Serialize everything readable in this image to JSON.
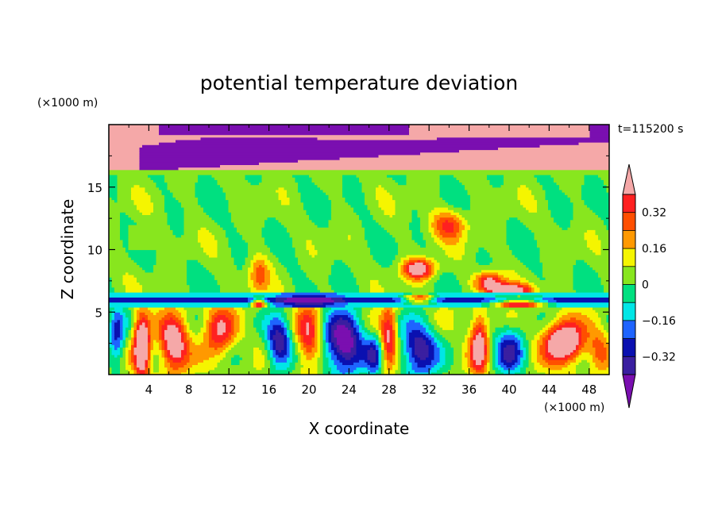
{
  "chart_data": {
    "type": "heatmap",
    "title": "potential temperature deviation",
    "xlabel": "X coordinate",
    "ylabel": "Z coordinate",
    "x_unit": "(×1000 m)",
    "y_unit": "(×1000 m)",
    "time_label": "t=115200 s",
    "xlim": [
      0,
      50
    ],
    "ylim": [
      0,
      20
    ],
    "x_ticks": [
      4,
      8,
      12,
      16,
      20,
      24,
      28,
      32,
      36,
      40,
      44,
      48
    ],
    "y_ticks": [
      5,
      10,
      15
    ],
    "colorbar": {
      "levels": [
        -0.4,
        -0.32,
        -0.24,
        -0.16,
        -0.08,
        0,
        0.08,
        0.16,
        0.24,
        0.32,
        0.4
      ],
      "labeled_levels": [
        "0.32",
        "0.16",
        "0",
        "−0.16",
        "−0.32"
      ],
      "colors": [
        "#7a0fb0",
        "#3a1fa0",
        "#0a10b0",
        "#1e64ff",
        "#00e6e6",
        "#00e080",
        "#88e61e",
        "#f5f500",
        "#ff9900",
        "#ff4f00",
        "#ff2020",
        "#f5a8a8"
      ]
    },
    "regions": [
      {
        "band": "z 16-20",
        "pattern": "alternating strong positive (pink) and strong negative (purple) layers"
      },
      {
        "band": "z 6.5-16",
        "pattern": "near-zero values, small positive patches around x 28-42"
      },
      {
        "band": "z 5.5-6.5",
        "pattern": "negative layer (cyan/blue)"
      },
      {
        "band": "z 0-5.5",
        "pattern": "strong alternating positive/negative convective cells"
      }
    ]
  }
}
